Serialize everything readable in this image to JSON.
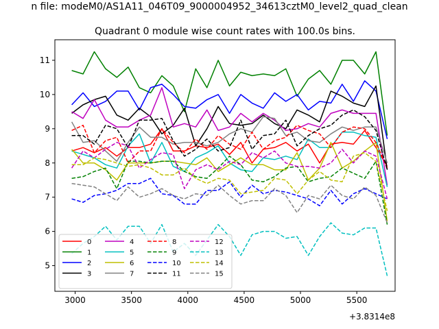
{
  "chart_data": {
    "type": "line",
    "suptitle": "n file: modeM0/AS1A11_046T09_9000004952_34613cztM0_level2_quad_clean",
    "title": "Quadrant 0 module wise count rates with 100.0s bins.",
    "xlabel": "",
    "ylabel": "",
    "x_offset_label": "+3.8314e8",
    "xlim": [
      2820,
      5840
    ],
    "ylim": [
      4.25,
      11.6
    ],
    "x_ticks": [
      3000,
      3500,
      4000,
      4500,
      5000,
      5500
    ],
    "x_tick_labels": [
      "3000",
      "3500",
      "4000",
      "4500",
      "5000",
      "5500"
    ],
    "y_ticks": [
      5,
      6,
      7,
      8,
      9,
      10,
      11
    ],
    "y_tick_labels": [
      "5",
      "6",
      "7",
      "8",
      "9",
      "10",
      "11"
    ],
    "legend_position": "lower-left",
    "legend_columns": 4,
    "x": [
      2970,
      3070,
      3170,
      3270,
      3370,
      3470,
      3570,
      3670,
      3770,
      3870,
      3970,
      4070,
      4170,
      4270,
      4370,
      4470,
      4570,
      4670,
      4770,
      4870,
      4970,
      5070,
      5170,
      5270,
      5370,
      5470,
      5570,
      5670,
      5770
    ],
    "series": [
      {
        "name": "0",
        "color": "#ff0000",
        "dash": "solid",
        "values": [
          8.35,
          8.45,
          8.3,
          8.45,
          8.2,
          8.45,
          8.45,
          8.55,
          9.0,
          8.35,
          8.35,
          8.5,
          8.45,
          8.55,
          8.25,
          8.6,
          8.0,
          8.4,
          8.45,
          8.6,
          8.35,
          8.55,
          8.0,
          8.55,
          8.6,
          8.55,
          8.95,
          8.45,
          7.9
        ]
      },
      {
        "name": "1",
        "color": "#008000",
        "dash": "solid",
        "values": [
          10.7,
          10.6,
          11.25,
          10.75,
          10.5,
          10.8,
          10.2,
          10.05,
          10.55,
          10.25,
          9.5,
          10.75,
          10.2,
          11.0,
          10.25,
          10.65,
          10.55,
          10.6,
          10.55,
          10.75,
          9.95,
          10.45,
          10.7,
          10.3,
          11.0,
          11.0,
          10.6,
          11.25,
          8.8
        ]
      },
      {
        "name": "2",
        "color": "#0000ff",
        "dash": "solid",
        "values": [
          9.7,
          10.05,
          9.65,
          9.8,
          10.1,
          10.1,
          9.55,
          10.2,
          10.3,
          10.0,
          9.65,
          9.6,
          9.85,
          10.0,
          9.45,
          10.0,
          9.75,
          9.6,
          10.05,
          9.8,
          10.0,
          9.55,
          9.8,
          9.75,
          10.3,
          9.8,
          10.4,
          10.1,
          8.7
        ]
      },
      {
        "name": "3",
        "color": "#000000",
        "dash": "solid",
        "values": [
          9.45,
          9.7,
          9.85,
          9.95,
          9.4,
          9.25,
          9.6,
          9.35,
          8.85,
          9.1,
          9.6,
          8.5,
          9.0,
          9.65,
          9.15,
          9.1,
          9.15,
          9.4,
          9.15,
          9.0,
          9.55,
          9.4,
          9.2,
          10.1,
          9.95,
          9.75,
          9.65,
          10.25,
          7.8
        ]
      },
      {
        "name": "4",
        "color": "#bf00bf",
        "dash": "solid",
        "values": [
          9.5,
          9.3,
          9.85,
          9.25,
          9.05,
          9.05,
          9.25,
          9.4,
          10.2,
          9.05,
          9.15,
          9.05,
          9.55,
          8.95,
          9.05,
          9.45,
          9.2,
          9.45,
          9.25,
          8.95,
          9.0,
          9.15,
          9.05,
          9.45,
          9.55,
          9.45,
          9.45,
          9.45,
          7.35
        ]
      },
      {
        "name": "5",
        "color": "#00bfbf",
        "dash": "solid",
        "values": [
          8.35,
          8.25,
          8.15,
          7.95,
          7.85,
          8.5,
          8.85,
          8.0,
          8.6,
          7.9,
          7.75,
          8.15,
          8.3,
          8.5,
          8.0,
          7.8,
          7.75,
          8.15,
          8.1,
          8.2,
          8.1,
          8.7,
          8.45,
          8.45,
          8.9,
          8.9,
          8.8,
          8.75,
          7.3
        ]
      },
      {
        "name": "6",
        "color": "#bfbf00",
        "dash": "solid",
        "values": [
          8.4,
          8.0,
          8.0,
          7.8,
          7.5,
          8.0,
          8.0,
          8.0,
          8.05,
          8.05,
          8.0,
          7.95,
          8.15,
          7.75,
          7.95,
          8.15,
          7.95,
          7.95,
          7.8,
          7.8,
          8.3,
          7.5,
          7.85,
          8.6,
          7.85,
          8.05,
          8.35,
          8.6,
          6.3
        ]
      },
      {
        "name": "7",
        "color": "#808080",
        "dash": "solid",
        "values": [
          9.2,
          8.6,
          8.65,
          8.35,
          8.05,
          8.6,
          9.05,
          8.75,
          8.75,
          8.55,
          8.6,
          8.6,
          8.5,
          8.6,
          8.85,
          9.0,
          8.9,
          9.35,
          9.3,
          8.8,
          8.9,
          8.65,
          8.6,
          8.85,
          9.05,
          8.95,
          9.05,
          9.05,
          8.0
        ]
      },
      {
        "name": "8",
        "color": "#ff0000",
        "dash": "dashed",
        "values": [
          8.95,
          9.1,
          8.3,
          8.65,
          8.75,
          8.0,
          8.35,
          8.35,
          9.0,
          8.6,
          8.3,
          8.7,
          8.4,
          8.8,
          8.55,
          8.4,
          8.9,
          8.4,
          8.65,
          8.75,
          9.1,
          8.95,
          8.85,
          8.45,
          8.9,
          9.05,
          9.0,
          8.6,
          7.85
        ]
      },
      {
        "name": "9",
        "color": "#008000",
        "dash": "dashed",
        "values": [
          7.55,
          7.6,
          7.75,
          7.85,
          7.25,
          8.05,
          8.05,
          8.0,
          8.05,
          8.05,
          7.75,
          7.6,
          7.55,
          7.85,
          8.2,
          7.95,
          7.5,
          7.45,
          7.6,
          7.85,
          7.9,
          7.45,
          7.55,
          7.6,
          7.85,
          7.7,
          7.55,
          8.05,
          6.2
        ]
      },
      {
        "name": "10",
        "color": "#0000ff",
        "dash": "dashed",
        "values": [
          6.95,
          6.85,
          7.05,
          7.1,
          7.2,
          7.4,
          7.4,
          7.55,
          7.1,
          7.05,
          6.8,
          6.8,
          7.2,
          7.2,
          7.45,
          7.0,
          7.35,
          7.1,
          7.2,
          7.15,
          7.05,
          6.95,
          6.75,
          7.2,
          6.8,
          7.1,
          7.25,
          7.1,
          6.95
        ]
      },
      {
        "name": "11",
        "color": "#000000",
        "dash": "dashed",
        "values": [
          8.8,
          8.8,
          8.55,
          9.1,
          9.0,
          8.45,
          9.25,
          9.25,
          9.3,
          8.65,
          8.2,
          8.4,
          8.7,
          8.35,
          8.45,
          9.25,
          8.4,
          8.8,
          8.85,
          9.25,
          8.5,
          8.8,
          9.0,
          9.1,
          9.4,
          9.55,
          9.35,
          8.95,
          7.8
        ]
      },
      {
        "name": "12",
        "color": "#bf00bf",
        "dash": "dashed",
        "values": [
          7.85,
          8.35,
          8.15,
          8.4,
          8.6,
          8.5,
          7.85,
          8.1,
          8.3,
          8.25,
          7.25,
          7.8,
          7.95,
          7.8,
          8.05,
          7.95,
          8.3,
          8.15,
          8.35,
          8.0,
          7.9,
          7.9,
          7.85,
          8.0,
          8.4,
          8.0,
          8.35,
          8.2,
          6.95
        ]
      },
      {
        "name": "13",
        "color": "#00bfbf",
        "dash": "dashed",
        "values": [
          5.35,
          5.65,
          5.85,
          6.15,
          5.75,
          6.15,
          6.15,
          5.65,
          6.2,
          5.4,
          5.65,
          5.3,
          5.75,
          6.2,
          5.85,
          5.3,
          5.9,
          6.0,
          6.0,
          5.8,
          5.85,
          5.3,
          5.85,
          6.25,
          5.95,
          5.9,
          6.1,
          6.1,
          4.7
        ]
      },
      {
        "name": "14",
        "color": "#bfbf00",
        "dash": "dashed",
        "values": [
          7.95,
          7.95,
          8.15,
          8.1,
          8.0,
          7.9,
          7.95,
          7.85,
          7.65,
          7.65,
          7.85,
          7.55,
          7.4,
          7.55,
          7.5,
          7.1,
          7.15,
          7.2,
          7.55,
          7.5,
          7.1,
          7.5,
          7.75,
          7.5,
          7.45,
          8.2,
          8.3,
          8.05,
          6.6
        ]
      },
      {
        "name": "15",
        "color": "#808080",
        "dash": "dashed",
        "values": [
          7.4,
          7.35,
          7.3,
          7.1,
          6.9,
          7.3,
          7.0,
          7.1,
          7.25,
          7.05,
          6.95,
          7.1,
          7.05,
          7.35,
          7.05,
          6.8,
          6.9,
          6.9,
          7.25,
          7.05,
          6.55,
          7.05,
          6.95,
          7.35,
          7.05,
          6.95,
          7.3,
          7.05,
          6.25
        ]
      }
    ]
  }
}
